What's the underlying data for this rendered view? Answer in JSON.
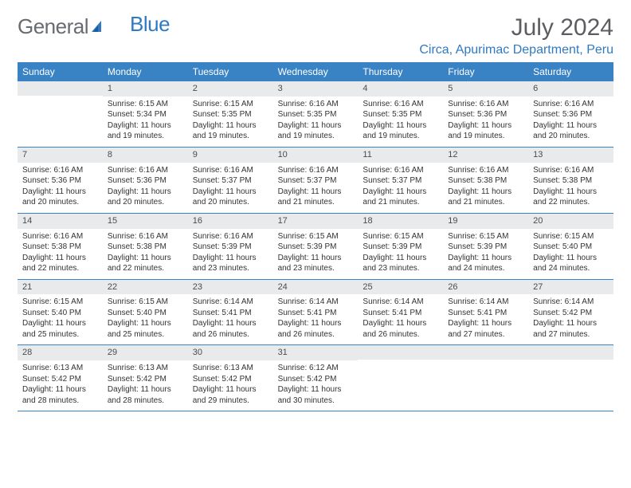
{
  "logo": {
    "part1": "General",
    "part2": "Blue"
  },
  "title": "July 2024",
  "location": "Circa, Apurimac Department, Peru",
  "colors": {
    "header_bg": "#3982c4",
    "header_text": "#ffffff",
    "daynum_bg": "#e9eaeb",
    "border": "#3982c4",
    "logo_gray": "#686b70",
    "logo_blue": "#2f7ac3",
    "title_color": "#5b5d61"
  },
  "dayNames": [
    "Sunday",
    "Monday",
    "Tuesday",
    "Wednesday",
    "Thursday",
    "Friday",
    "Saturday"
  ],
  "weeks": [
    [
      null,
      {
        "d": "1",
        "sr": "6:15 AM",
        "ss": "5:34 PM",
        "dl": "11 hours and 19 minutes."
      },
      {
        "d": "2",
        "sr": "6:15 AM",
        "ss": "5:35 PM",
        "dl": "11 hours and 19 minutes."
      },
      {
        "d": "3",
        "sr": "6:16 AM",
        "ss": "5:35 PM",
        "dl": "11 hours and 19 minutes."
      },
      {
        "d": "4",
        "sr": "6:16 AM",
        "ss": "5:35 PM",
        "dl": "11 hours and 19 minutes."
      },
      {
        "d": "5",
        "sr": "6:16 AM",
        "ss": "5:36 PM",
        "dl": "11 hours and 19 minutes."
      },
      {
        "d": "6",
        "sr": "6:16 AM",
        "ss": "5:36 PM",
        "dl": "11 hours and 20 minutes."
      }
    ],
    [
      {
        "d": "7",
        "sr": "6:16 AM",
        "ss": "5:36 PM",
        "dl": "11 hours and 20 minutes."
      },
      {
        "d": "8",
        "sr": "6:16 AM",
        "ss": "5:36 PM",
        "dl": "11 hours and 20 minutes."
      },
      {
        "d": "9",
        "sr": "6:16 AM",
        "ss": "5:37 PM",
        "dl": "11 hours and 20 minutes."
      },
      {
        "d": "10",
        "sr": "6:16 AM",
        "ss": "5:37 PM",
        "dl": "11 hours and 21 minutes."
      },
      {
        "d": "11",
        "sr": "6:16 AM",
        "ss": "5:37 PM",
        "dl": "11 hours and 21 minutes."
      },
      {
        "d": "12",
        "sr": "6:16 AM",
        "ss": "5:38 PM",
        "dl": "11 hours and 21 minutes."
      },
      {
        "d": "13",
        "sr": "6:16 AM",
        "ss": "5:38 PM",
        "dl": "11 hours and 22 minutes."
      }
    ],
    [
      {
        "d": "14",
        "sr": "6:16 AM",
        "ss": "5:38 PM",
        "dl": "11 hours and 22 minutes."
      },
      {
        "d": "15",
        "sr": "6:16 AM",
        "ss": "5:38 PM",
        "dl": "11 hours and 22 minutes."
      },
      {
        "d": "16",
        "sr": "6:16 AM",
        "ss": "5:39 PM",
        "dl": "11 hours and 23 minutes."
      },
      {
        "d": "17",
        "sr": "6:15 AM",
        "ss": "5:39 PM",
        "dl": "11 hours and 23 minutes."
      },
      {
        "d": "18",
        "sr": "6:15 AM",
        "ss": "5:39 PM",
        "dl": "11 hours and 23 minutes."
      },
      {
        "d": "19",
        "sr": "6:15 AM",
        "ss": "5:39 PM",
        "dl": "11 hours and 24 minutes."
      },
      {
        "d": "20",
        "sr": "6:15 AM",
        "ss": "5:40 PM",
        "dl": "11 hours and 24 minutes."
      }
    ],
    [
      {
        "d": "21",
        "sr": "6:15 AM",
        "ss": "5:40 PM",
        "dl": "11 hours and 25 minutes."
      },
      {
        "d": "22",
        "sr": "6:15 AM",
        "ss": "5:40 PM",
        "dl": "11 hours and 25 minutes."
      },
      {
        "d": "23",
        "sr": "6:14 AM",
        "ss": "5:41 PM",
        "dl": "11 hours and 26 minutes."
      },
      {
        "d": "24",
        "sr": "6:14 AM",
        "ss": "5:41 PM",
        "dl": "11 hours and 26 minutes."
      },
      {
        "d": "25",
        "sr": "6:14 AM",
        "ss": "5:41 PM",
        "dl": "11 hours and 26 minutes."
      },
      {
        "d": "26",
        "sr": "6:14 AM",
        "ss": "5:41 PM",
        "dl": "11 hours and 27 minutes."
      },
      {
        "d": "27",
        "sr": "6:14 AM",
        "ss": "5:42 PM",
        "dl": "11 hours and 27 minutes."
      }
    ],
    [
      {
        "d": "28",
        "sr": "6:13 AM",
        "ss": "5:42 PM",
        "dl": "11 hours and 28 minutes."
      },
      {
        "d": "29",
        "sr": "6:13 AM",
        "ss": "5:42 PM",
        "dl": "11 hours and 28 minutes."
      },
      {
        "d": "30",
        "sr": "6:13 AM",
        "ss": "5:42 PM",
        "dl": "11 hours and 29 minutes."
      },
      {
        "d": "31",
        "sr": "6:12 AM",
        "ss": "5:42 PM",
        "dl": "11 hours and 30 minutes."
      },
      null,
      null,
      null
    ]
  ],
  "labels": {
    "sunrise": "Sunrise:",
    "sunset": "Sunset:",
    "daylight": "Daylight:"
  }
}
